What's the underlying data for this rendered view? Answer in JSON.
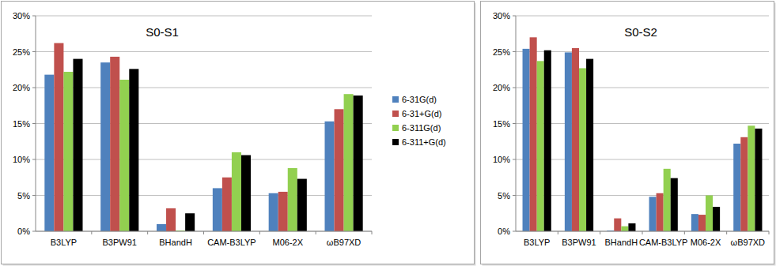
{
  "chart_data": [
    {
      "type": "bar",
      "title": "S0-S1",
      "categories": [
        "B3LYP",
        "B3PW91",
        "BHandH",
        "CAM-B3LYP",
        "M06-2X",
        "ωB97XD"
      ],
      "series": [
        {
          "name": "6-31G(d)",
          "color": "#4f81bd",
          "values": [
            21.8,
            23.5,
            1.0,
            6.0,
            5.3,
            15.3
          ]
        },
        {
          "name": "6-31+G(d)",
          "color": "#c0504d",
          "values": [
            26.2,
            24.3,
            3.2,
            7.5,
            5.5,
            17.0
          ]
        },
        {
          "name": "6-311G(d)",
          "color": "#92d050",
          "values": [
            22.2,
            21.1,
            0.1,
            11.0,
            8.8,
            19.1
          ]
        },
        {
          "name": "6-311+G(d)",
          "color": "#000000",
          "values": [
            24.0,
            22.6,
            2.5,
            10.6,
            7.3,
            18.9
          ]
        }
      ],
      "ylim": [
        0,
        30
      ],
      "yticks": [
        {
          "value": 0,
          "label": "0%"
        },
        {
          "value": 5,
          "label": "5%"
        },
        {
          "value": 10,
          "label": "10%"
        },
        {
          "value": 15,
          "label": "15%"
        },
        {
          "value": 20,
          "label": "20%"
        },
        {
          "value": 25,
          "label": "25%"
        },
        {
          "value": 30,
          "label": "30%"
        }
      ],
      "grid": true,
      "legend": "right"
    },
    {
      "type": "bar",
      "title": "S0-S2",
      "categories": [
        "B3LYP",
        "B3PW91",
        "BHandH",
        "CAM-B3LYP",
        "M06-2X",
        "ωB97XD"
      ],
      "series": [
        {
          "name": "6-31G(d)",
          "color": "#4f81bd",
          "values": [
            25.4,
            24.9,
            0.1,
            4.8,
            2.4,
            12.2
          ]
        },
        {
          "name": "6-31+G(d)",
          "color": "#c0504d",
          "values": [
            27.0,
            25.5,
            1.8,
            5.3,
            2.3,
            13.1
          ]
        },
        {
          "name": "6-311G(d)",
          "color": "#92d050",
          "values": [
            23.7,
            22.7,
            0.7,
            8.7,
            5.0,
            14.7
          ]
        },
        {
          "name": "6-311+G(d)",
          "color": "#000000",
          "values": [
            25.2,
            24.0,
            1.1,
            7.4,
            3.4,
            14.3
          ]
        }
      ],
      "ylim": [
        0,
        30
      ],
      "yticks": [
        {
          "value": 0,
          "label": "0%"
        },
        {
          "value": 5,
          "label": "5%"
        },
        {
          "value": 10,
          "label": "10%"
        },
        {
          "value": 15,
          "label": "15%"
        },
        {
          "value": 20,
          "label": "20%"
        },
        {
          "value": 25,
          "label": "25%"
        },
        {
          "value": 30,
          "label": "30%"
        }
      ],
      "grid": true
    }
  ]
}
